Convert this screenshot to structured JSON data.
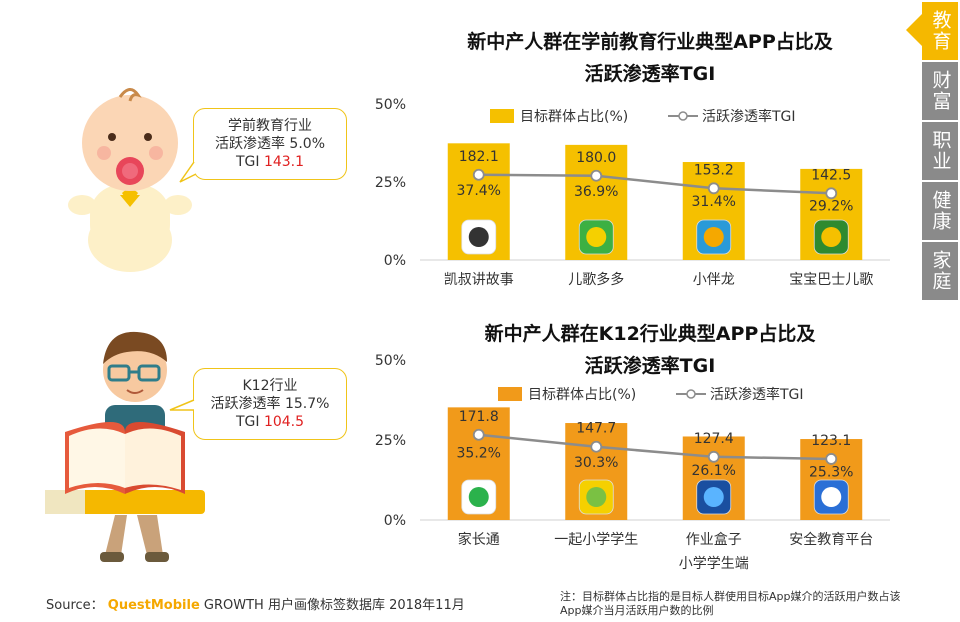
{
  "tabs": [
    {
      "label": "教育",
      "active": true
    },
    {
      "label": "财富",
      "active": false
    },
    {
      "label": "职业",
      "active": false
    },
    {
      "label": "健康",
      "active": false
    },
    {
      "label": "家庭",
      "active": false
    }
  ],
  "callouts": [
    {
      "line1": "学前教育行业",
      "line2": "活跃渗透率 5.0%",
      "tgi_prefix": "TGI ",
      "tgi_value": "143.1"
    },
    {
      "line1": "K12行业",
      "line2": "活跃渗透率 15.7%",
      "tgi_prefix": "TGI ",
      "tgi_value": "104.5"
    }
  ],
  "footer": {
    "source_prefix": "Source：",
    "brand": "QuestMobile",
    "source_text": "GROWTH 用户画像标签数据库 2018年11月",
    "note": "注：目标群体占比指的是目标人群使用目标App媒介的活跃用户数占该App媒介当月活跃用户数的比例"
  },
  "chart_data": [
    {
      "type": "bar",
      "title_line1": "新中产人群在学前教育行业典型APP占比及",
      "title_line2": "活跃渗透率TGI",
      "categories": [
        "凯叔讲故事",
        "儿歌多多",
        "小伴龙",
        "宝宝巴士儿歌"
      ],
      "series": [
        {
          "name": "目标群体占比(%)",
          "kind": "bar",
          "values": [
            37.4,
            36.9,
            31.4,
            29.2
          ],
          "labels": [
            "37.4%",
            "36.9%",
            "31.4%",
            "29.2%"
          ],
          "color": "#f5c000"
        },
        {
          "name": "活跃渗透率TGI",
          "kind": "line",
          "values": [
            182.1,
            180.0,
            153.2,
            142.5
          ],
          "labels": [
            "182.1",
            "180.0",
            "153.2",
            "142.5"
          ],
          "color": "#8c8c8c"
        }
      ],
      "y_ticks": [
        "50%",
        "25%",
        "0%"
      ],
      "ylim": [
        0,
        50
      ],
      "legend_position": "top"
    },
    {
      "type": "bar",
      "title_line1": "新中产人群在K12行业典型APP占比及",
      "title_line2": "活跃渗透率TGI",
      "categories": [
        "家长通",
        "一起小学学生",
        "作业盒子\n小学学生端",
        "安全教育平台"
      ],
      "series": [
        {
          "name": "目标群体占比(%)",
          "kind": "bar",
          "values": [
            35.2,
            30.3,
            26.1,
            25.3
          ],
          "labels": [
            "35.2%",
            "30.3%",
            "26.1%",
            "25.3%"
          ],
          "color": "#f19a1a"
        },
        {
          "name": "活跃渗透率TGI",
          "kind": "line",
          "values": [
            171.8,
            147.7,
            127.4,
            123.1
          ],
          "labels": [
            "171.8",
            "147.7",
            "127.4",
            "123.1"
          ],
          "color": "#8c8c8c"
        }
      ],
      "y_ticks": [
        "50%",
        "25%",
        "0%"
      ],
      "ylim": [
        0,
        50
      ],
      "legend_position": "top"
    }
  ],
  "colors": {
    "accent": "#f5b800",
    "tab_gray": "#8a8a8a",
    "tgi_red": "#e02020",
    "brand": "#f5a800"
  }
}
